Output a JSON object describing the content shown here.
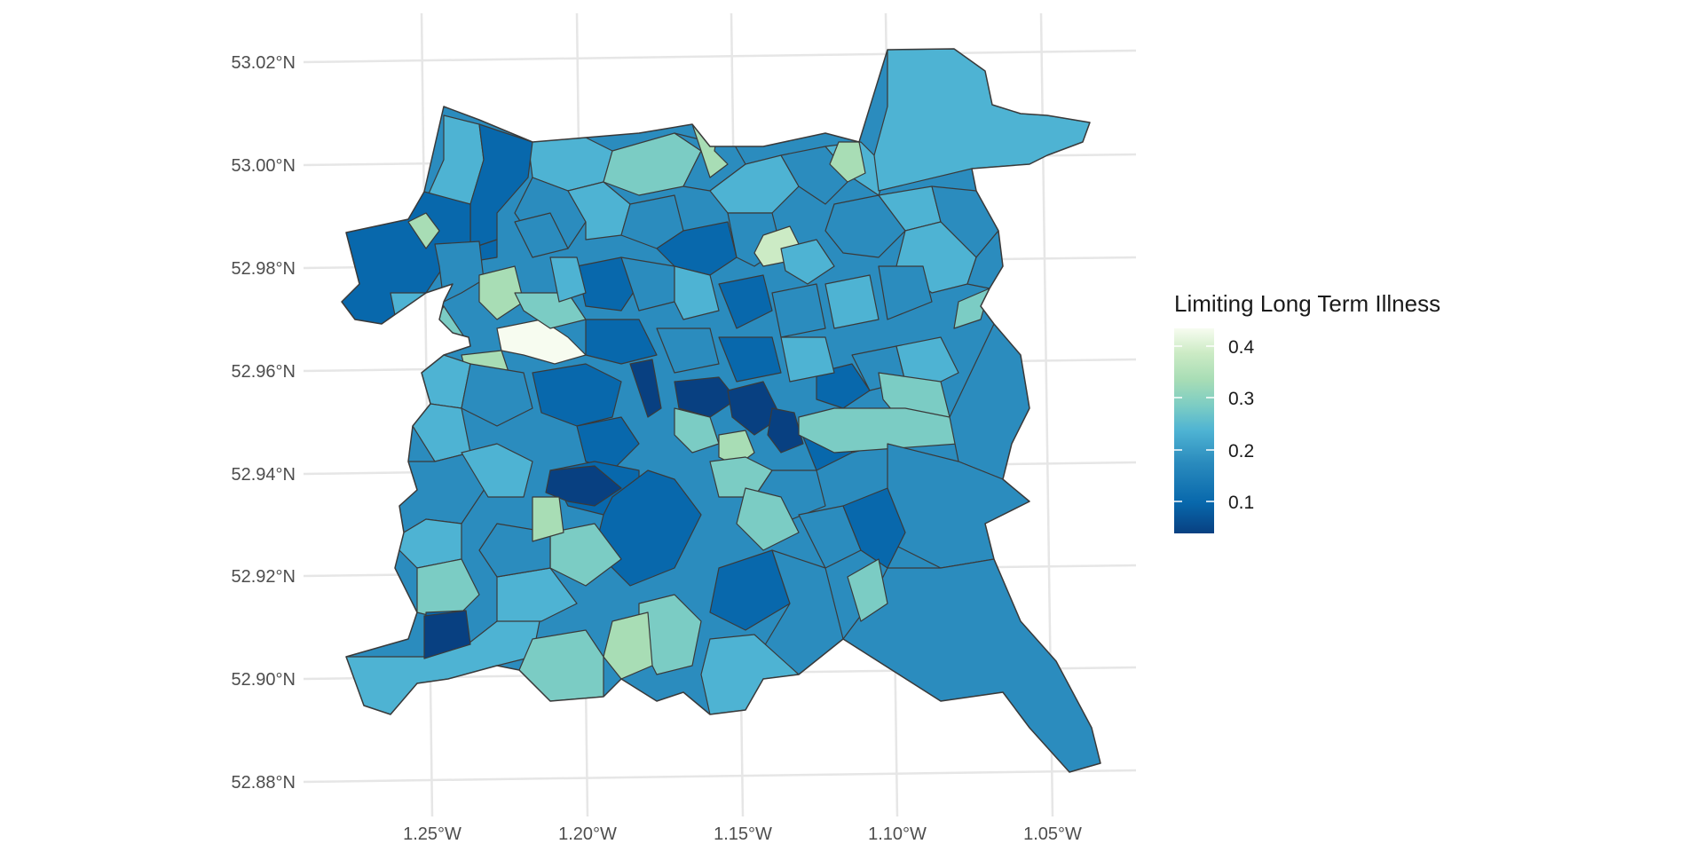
{
  "map": {
    "axes": {
      "x_tick_labels": [
        "1.25°W",
        "1.20°W",
        "1.15°W",
        "1.10°W",
        "1.05°W"
      ],
      "y_tick_labels": [
        "53.02°N",
        "53.00°N",
        "52.98°N",
        "52.96°N",
        "52.94°N",
        "52.92°N",
        "52.90°N",
        "52.88°N"
      ],
      "x_range_deg": [
        -1.285,
        -1.025
      ],
      "y_range_deg": [
        52.875,
        53.028
      ],
      "grid": true
    },
    "legend": {
      "title": "Limiting Long Term Illness",
      "ticks": [
        "0.4",
        "0.3",
        "0.2",
        "0.1"
      ],
      "tick_values": [
        0.4,
        0.3,
        0.2,
        0.1
      ],
      "min": 0.04,
      "max": 0.44,
      "position": "right"
    },
    "colors": {
      "scale": [
        "#084081",
        "#0868ac",
        "#2b8cbe",
        "#4eb3d3",
        "#7bccc4",
        "#a8ddb5",
        "#ccebc5",
        "#f7fcf0"
      ],
      "border": "#3a3a3a",
      "grid": "#e6e6e6",
      "background": "#ffffff"
    }
  }
}
